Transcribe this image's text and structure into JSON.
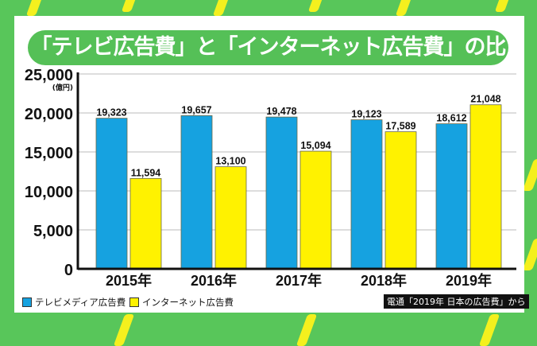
{
  "title": "「テレビ広告費」と「インターネット広告費」の比較",
  "source": "電通「2019年 日本の広告費」から",
  "colors": {
    "tv": "#16a2e0",
    "internet": "#fff200",
    "background": "#58c65a",
    "title_bg": "#55c057"
  },
  "chart_data": {
    "type": "bar",
    "title": "「テレビ広告費」と「インターネット広告費」の比較",
    "unit": "(億円)",
    "categories": [
      "2015年",
      "2016年",
      "2017年",
      "2018年",
      "2019年"
    ],
    "series": [
      {
        "name": "テレビメディア広告費",
        "values": [
          19323,
          19657,
          19478,
          19123,
          18612
        ],
        "labels": [
          "19,323",
          "19,657",
          "19,478",
          "19,123",
          "18,612"
        ]
      },
      {
        "name": "インターネット広告費",
        "values": [
          11594,
          13100,
          15094,
          17589,
          21048
        ],
        "labels": [
          "11,594",
          "13,100",
          "15,094",
          "17,589",
          "21,048"
        ]
      }
    ],
    "ylim": [
      0,
      25000
    ],
    "yticks": [
      0,
      5000,
      10000,
      15000,
      20000,
      25000
    ],
    "ytick_labels": [
      "0",
      "5,000",
      "10,000",
      "15,000",
      "20,000",
      "25,000"
    ],
    "grid": true,
    "legend": "bottom-left"
  }
}
